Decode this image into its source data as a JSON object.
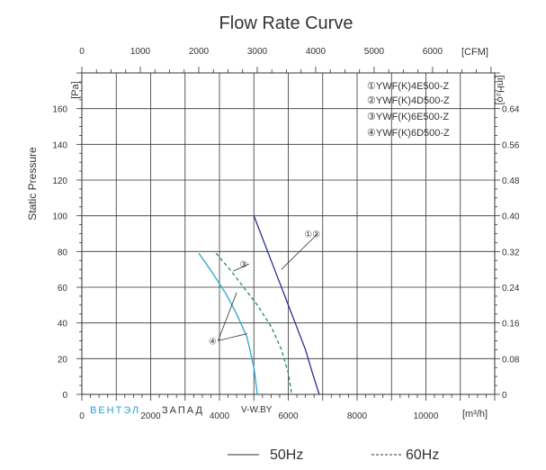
{
  "chart_data": {
    "type": "line",
    "title": "Flow Rate Curve",
    "ylabel": "Static Pressure",
    "y_unit": "[Pa]",
    "y2_unit": "[inH₂o]",
    "x_unit": "[m³/h]",
    "x2_unit": "[CFM]",
    "xlim": [
      0,
      12000
    ],
    "ylim": [
      0,
      180
    ],
    "x_ticks": [
      0,
      2000,
      4000,
      6000,
      8000,
      10000
    ],
    "y_ticks": [
      0,
      20,
      40,
      60,
      80,
      100,
      120,
      140,
      160
    ],
    "x2_ticks": [
      0,
      1000,
      2000,
      3000,
      4000,
      5000,
      6000
    ],
    "y2_ticks": [
      "0",
      "0.08",
      "0.16",
      "0.24",
      "0.32",
      "0.40",
      "0.48",
      "0.56",
      "0.64"
    ],
    "grid": true,
    "models": [
      "①YWF(K)4E500-Z",
      "②YWF(K)4D500-Z",
      "③YWF(K)6E500-Z",
      "④YWF(K)6D500-Z"
    ],
    "series": [
      {
        "label": "①②",
        "style": "solid",
        "color": "#2b2f8f",
        "x": [
          5000,
          5300,
          5600,
          5900,
          6200,
          6500,
          6700,
          6900
        ],
        "y": [
          100,
          85,
          70,
          55,
          40,
          25,
          12,
          0
        ]
      },
      {
        "label": "③",
        "style": "dashed",
        "color": "#1f8f5a",
        "x": [
          3900,
          4300,
          4700,
          5100,
          5500,
          5800,
          6000,
          6100
        ],
        "y": [
          79,
          70,
          60,
          50,
          38,
          25,
          12,
          0
        ]
      },
      {
        "label": "④",
        "style": "solid",
        "color": "#2aa6d6",
        "x": [
          3400,
          3800,
          4200,
          4500,
          4800,
          5000,
          5100
        ],
        "y": [
          79,
          68,
          56,
          45,
          32,
          15,
          0
        ]
      }
    ],
    "callouts": [
      {
        "text": "①②",
        "x": 6700,
        "y": 90,
        "targets": [
          [
            5800,
            70
          ]
        ]
      },
      {
        "text": "③",
        "x": 4700,
        "y": 73,
        "targets": [
          [
            4400,
            69
          ]
        ]
      },
      {
        "text": "④",
        "x": 3800,
        "y": 30,
        "targets": [
          [
            4500,
            57
          ],
          [
            4800,
            34
          ]
        ]
      }
    ],
    "legend_bottom": [
      "50Hz",
      "60Hz"
    ]
  },
  "watermark": {
    "left": "ВЕНТЭЛ",
    "right": "ЗАПАД",
    "site": "V-W.BY"
  },
  "colors": {
    "s12": "#2b2f8f",
    "s3": "#1f8f5a",
    "s4": "#2aa6d6",
    "grid": "#333333",
    "wm_blue": "#2a9fd6"
  }
}
